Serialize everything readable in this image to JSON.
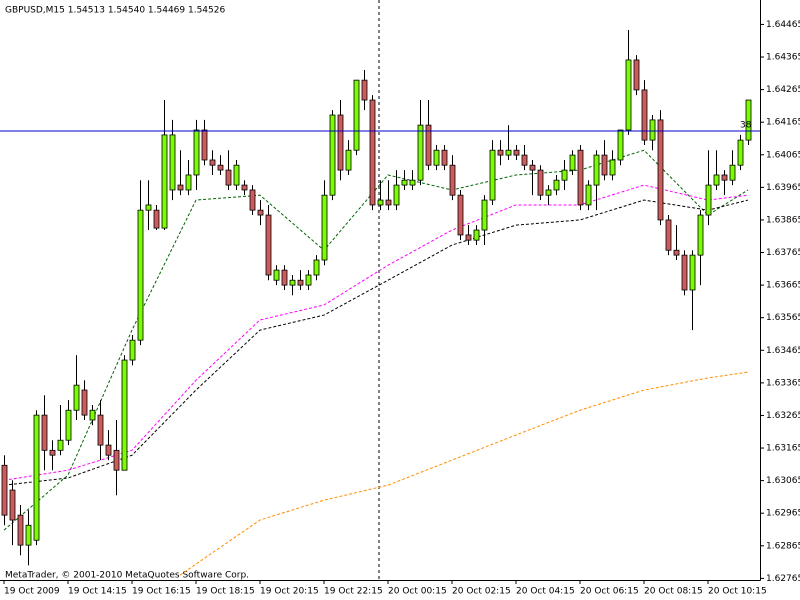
{
  "chart_data": {
    "type": "candlestick",
    "title": "GBPUSD,M15  1.54513 1.54540 1.54469 1.54526",
    "footer": "MetaTrader, © 2001-2010 MetaQuotes Software Corp.",
    "ylim": [
      1.6276,
      1.6454
    ],
    "yticks": [
      1.64465,
      1.64365,
      1.64265,
      1.64165,
      1.64065,
      1.63965,
      1.63865,
      1.63765,
      1.63665,
      1.63565,
      1.63465,
      1.63365,
      1.63265,
      1.63165,
      1.63065,
      1.62965,
      1.62865,
      1.62765
    ],
    "categories": [
      "19 Oct 2009",
      null,
      null,
      null,
      null,
      null,
      null,
      null,
      "19 Oct 14:15",
      null,
      null,
      null,
      null,
      null,
      null,
      null,
      "19 Oct 16:15",
      null,
      null,
      null,
      null,
      null,
      null,
      null,
      "19 Oct 18:15",
      null,
      null,
      null,
      null,
      null,
      null,
      null,
      "19 Oct 20:15",
      null,
      null,
      null,
      null,
      null,
      null,
      null,
      "19 Oct 22:15",
      null,
      null,
      null,
      null,
      null,
      null,
      null,
      "20 Oct 00:15",
      null,
      null,
      null,
      null,
      null,
      null,
      null,
      "20 Oct 02:15",
      null,
      null,
      null,
      null,
      null,
      null,
      null,
      "20 Oct 04:15",
      null,
      null,
      null,
      null,
      null,
      null,
      null,
      "20 Oct 06:15",
      null,
      null,
      null,
      null,
      null,
      null,
      null,
      "20 Oct 08:15",
      null,
      null,
      null,
      null,
      null,
      null,
      null,
      "20 Oct 10:15",
      null,
      null,
      null,
      null,
      null
    ],
    "open": [
      1.63112,
      1.63036,
      1.62959,
      1.62867,
      1.62882,
      1.63266,
      1.63158,
      1.63158,
      1.63189,
      1.63281,
      1.63343,
      1.63251,
      1.63266,
      1.63174,
      1.63158,
      1.63097,
      1.63435,
      1.63496,
      1.63895,
      1.63895,
      1.6384,
      1.63957,
      1.63972,
      1.63957,
      1.64003,
      1.64141,
      1.64049,
      1.64033,
      1.64018,
      1.63972,
      1.63972,
      1.63957,
      1.63895,
      1.6388,
      1.6368,
      1.63711,
      1.63665,
      1.6368,
      1.63665,
      1.63696,
      1.63742,
      1.63941,
      1.64187,
      1.64018,
      1.64079,
      1.64294,
      1.64233,
      1.63911,
      1.63926,
      1.63911,
      1.63972,
      1.63972,
      1.63987,
      1.64156,
      1.64033,
      1.64079,
      1.64033,
      1.63941,
      1.63819,
      1.63803,
      1.63834,
      1.63926,
      1.64079,
      1.64064,
      1.64079,
      1.64064,
      1.64033,
      1.64018,
      1.63941,
      1.63957,
      1.63987,
      1.64018,
      1.64079,
      1.63911,
      1.63972,
      1.64064,
      1.64003,
      1.64049,
      1.64141,
      1.64356,
      1.64264,
      1.6411,
      1.64172,
      1.63865,
      1.63772,
      1.63757,
      1.6365,
      1.63757,
      1.6388,
      1.63972,
      1.64003,
      1.63987,
      1.64033,
      1.6411
    ],
    "high": [
      1.63143,
      1.63066,
      1.6299,
      1.62974,
      1.63281,
      1.63327,
      1.63189,
      1.63297,
      1.63312,
      1.6345,
      1.63373,
      1.63297,
      1.63312,
      1.6322,
      1.63251,
      1.6345,
      1.63512,
      1.63987,
      1.63987,
      1.63911,
      1.64233,
      1.64172,
      1.64079,
      1.64049,
      1.64172,
      1.64172,
      1.64079,
      1.64064,
      1.64079,
      1.64049,
      1.63987,
      1.63972,
      1.63926,
      1.63911,
      1.63726,
      1.63726,
      1.63696,
      1.63711,
      1.63711,
      1.63757,
      1.63987,
      1.64202,
      1.64233,
      1.6411,
      1.64294,
      1.64325,
      1.64248,
      1.63987,
      1.63987,
      1.64018,
      1.64018,
      1.64018,
      1.64233,
      1.64233,
      1.64095,
      1.64095,
      1.64064,
      1.63957,
      1.63849,
      1.63849,
      1.63941,
      1.6411,
      1.6411,
      1.64156,
      1.64095,
      1.64095,
      1.64049,
      1.64033,
      1.63972,
      1.64003,
      1.64049,
      1.64079,
      1.64095,
      1.63987,
      1.64079,
      1.6411,
      1.64079,
      1.64141,
      1.64448,
      1.64371,
      1.64294,
      1.64187,
      1.64202,
      1.6388,
      1.63849,
      1.63772,
      1.63772,
      1.63895,
      1.64079,
      1.64079,
      1.64018,
      1.64079,
      1.64126,
      1.64233
    ],
    "low": [
      1.62928,
      1.62867,
      1.62836,
      1.62805,
      1.62867,
      1.63097,
      1.63097,
      1.63143,
      1.63174,
      1.63251,
      1.63251,
      1.63235,
      1.63128,
      1.63128,
      1.6302,
      1.63097,
      1.63419,
      1.63481,
      1.63834,
      1.63834,
      1.63834,
      1.63926,
      1.63941,
      1.63941,
      1.63957,
      1.64033,
      1.64003,
      1.64003,
      1.63957,
      1.63957,
      1.63941,
      1.6388,
      1.63849,
      1.6368,
      1.63665,
      1.6365,
      1.63634,
      1.6365,
      1.6365,
      1.6368,
      1.63726,
      1.63926,
      1.63987,
      1.64003,
      1.64064,
      1.64202,
      1.63895,
      1.63895,
      1.63895,
      1.63895,
      1.63957,
      1.63957,
      1.63972,
      1.64018,
      1.64018,
      1.64018,
      1.63926,
      1.63803,
      1.63788,
      1.63788,
      1.63788,
      1.63911,
      1.64033,
      1.64049,
      1.64049,
      1.64018,
      1.63941,
      1.63926,
      1.63911,
      1.63941,
      1.63957,
      1.64003,
      1.63895,
      1.63895,
      1.63895,
      1.63987,
      1.63987,
      1.64033,
      1.64126,
      1.64248,
      1.64095,
      1.64079,
      1.63849,
      1.63757,
      1.63742,
      1.63634,
      1.63527,
      1.63665,
      1.63849,
      1.63957,
      1.63941,
      1.63972,
      1.64018,
      1.64095
    ],
    "close": [
      1.62959,
      1.62944,
      1.62867,
      1.62928,
      1.63266,
      1.63158,
      1.63143,
      1.63189,
      1.63281,
      1.63358,
      1.63266,
      1.63281,
      1.63174,
      1.63143,
      1.63097,
      1.63435,
      1.63496,
      1.63895,
      1.63911,
      1.6384,
      1.64126,
      1.64126,
      1.63957,
      1.64003,
      1.64141,
      1.64049,
      1.64033,
      1.64018,
      1.63972,
      1.64033,
      1.63957,
      1.63895,
      1.6388,
      1.63696,
      1.63711,
      1.63665,
      1.6368,
      1.63665,
      1.63696,
      1.63742,
      1.63941,
      1.64187,
      1.64018,
      1.64079,
      1.64294,
      1.64233,
      1.63911,
      1.63926,
      1.63911,
      1.63972,
      1.63987,
      1.63987,
      1.64156,
      1.64033,
      1.64079,
      1.64033,
      1.63941,
      1.63819,
      1.63803,
      1.63834,
      1.63926,
      1.64079,
      1.64064,
      1.64079,
      1.64064,
      1.64033,
      1.64018,
      1.63941,
      1.63957,
      1.63987,
      1.64018,
      1.64064,
      1.63911,
      1.63972,
      1.64064,
      1.64003,
      1.64049,
      1.64141,
      1.64356,
      1.64264,
      1.6411,
      1.64172,
      1.63865,
      1.63772,
      1.63757,
      1.6365,
      1.63757,
      1.6388,
      1.63972,
      1.64003,
      1.63987,
      1.64033,
      1.6411,
      1.64233
    ],
    "up_color": "#7cfc00",
    "down_color": "#cd5c5c",
    "indicators": [
      {
        "color": "#006400",
        "x": [
          0,
          8,
          16,
          24,
          32,
          40,
          48,
          56,
          64,
          72,
          80,
          88,
          93
        ],
        "values": [
          1.62913,
          1.63082,
          1.63527,
          1.63926,
          1.63941,
          1.63772,
          1.64003,
          1.63957,
          1.64003,
          1.64018,
          1.64079,
          1.6388,
          1.63957
        ]
      },
      {
        "color": "#ff00ff",
        "x": [
          0,
          8,
          16,
          24,
          32,
          40,
          48,
          56,
          64,
          72,
          80,
          88,
          93
        ],
        "values": [
          1.63066,
          1.63097,
          1.63158,
          1.63373,
          1.63558,
          1.63604,
          1.63726,
          1.63834,
          1.63911,
          1.63911,
          1.63972,
          1.63926,
          1.63941
        ]
      },
      {
        "color": "#000000",
        "x": [
          0,
          8,
          16,
          24,
          32,
          40,
          48,
          56,
          64,
          72,
          80,
          88,
          93
        ],
        "values": [
          1.63051,
          1.63073,
          1.63143,
          1.63343,
          1.63527,
          1.63573,
          1.6368,
          1.63788,
          1.63849,
          1.63865,
          1.63926,
          1.63895,
          1.63926
        ]
      },
      {
        "color": "#ff8c00",
        "x": [
          22,
          32,
          40,
          48,
          56,
          64,
          72,
          80,
          88,
          93
        ],
        "values": [
          1.62775,
          1.62944,
          1.63005,
          1.63051,
          1.63128,
          1.63205,
          1.63281,
          1.63343,
          1.6338,
          1.63398
        ]
      }
    ],
    "hline": {
      "value": 1.64138,
      "label": "38",
      "color": "#0000cd"
    }
  }
}
